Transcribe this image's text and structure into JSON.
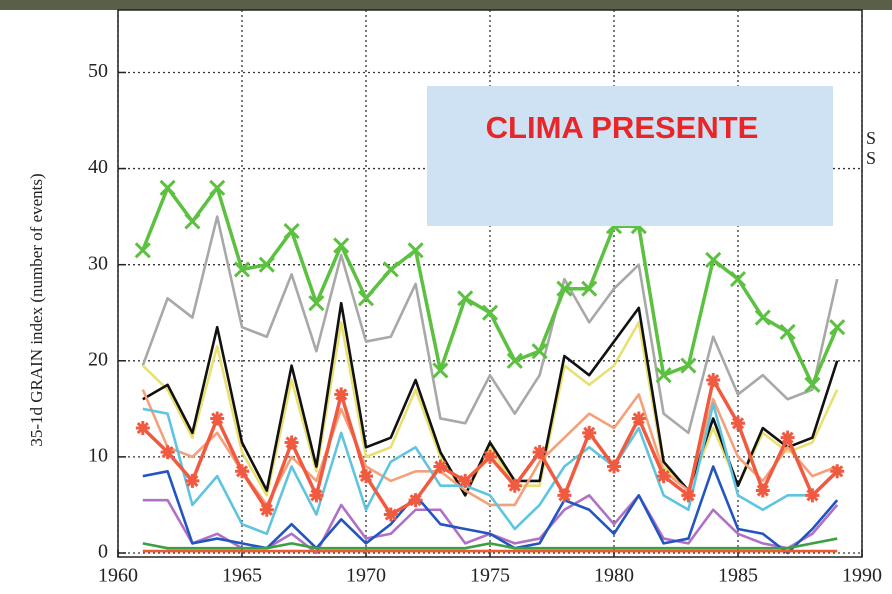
{
  "chart_data": {
    "type": "line",
    "y_label": "35-1d GRAIN index (number of events)",
    "annotation": "CLIMA PRESENTE",
    "right_labels": [
      "S",
      "S"
    ],
    "x": [
      1961,
      1962,
      1963,
      1964,
      1965,
      1966,
      1967,
      1968,
      1969,
      1970,
      1971,
      1972,
      1973,
      1974,
      1975,
      1976,
      1977,
      1978,
      1979,
      1980,
      1981,
      1982,
      1983,
      1984,
      1985,
      1986,
      1987,
      1988,
      1989
    ],
    "xlim": [
      1960,
      1990
    ],
    "xticks": [
      1960,
      1965,
      1970,
      1975,
      1980,
      1985,
      1990
    ],
    "ylim": [
      0,
      56.5
    ],
    "yticks": [
      0,
      10,
      20,
      30,
      40,
      50
    ],
    "grid": true,
    "series": [
      {
        "color": "#a8a8a8",
        "values": [
          19.5,
          26.5,
          24.5,
          35,
          23.5,
          22.5,
          29,
          21,
          31,
          22,
          22.5,
          28,
          14,
          13.5,
          18.5,
          14.5,
          18.5,
          28.5,
          24,
          27.5,
          30,
          14.5,
          12.5,
          22.5,
          16.5,
          18.5,
          16,
          17,
          28.5
        ]
      },
      {
        "color": "#e8e070",
        "values": [
          19.5,
          17,
          12,
          21.5,
          10.5,
          6,
          18,
          8.5,
          24,
          10,
          11,
          17,
          10,
          6,
          11,
          7,
          7,
          19.5,
          17.5,
          19.5,
          24,
          9,
          6.5,
          13,
          7,
          12.5,
          10.5,
          11.5,
          17
        ]
      },
      {
        "color": "#111111",
        "values": [
          16,
          17.5,
          12.5,
          23.5,
          11.5,
          6.5,
          19.5,
          9,
          26,
          11,
          12,
          18,
          10.5,
          6,
          11.5,
          7.5,
          7.5,
          20.5,
          18.5,
          22,
          25.5,
          9.5,
          6.5,
          14,
          7,
          13,
          11,
          12,
          20
        ]
      },
      {
        "color": "#f4a07a",
        "values": [
          17,
          11,
          10,
          12.5,
          8.5,
          5,
          10,
          7.5,
          15,
          9,
          7.5,
          8.5,
          8.5,
          6.5,
          5,
          5,
          9.5,
          12,
          14.5,
          13,
          16.5,
          8.5,
          6.5,
          16,
          10,
          7.5,
          11,
          8,
          9
        ]
      },
      {
        "color": "#5ec4e0",
        "values": [
          15,
          14.5,
          5,
          8,
          3,
          2,
          9,
          4,
          12.5,
          4.5,
          9.5,
          11,
          7,
          7,
          6,
          2.5,
          5,
          9,
          11,
          9,
          13,
          6,
          4.5,
          15.5,
          6,
          4.5,
          6,
          6,
          8.5
        ]
      },
      {
        "color": "#b070c8",
        "values": [
          5.5,
          5.5,
          1,
          2,
          0.5,
          0.5,
          2,
          0,
          5,
          1.5,
          2,
          4.5,
          4.5,
          1,
          2,
          1,
          1.5,
          4.5,
          6,
          3,
          6,
          1.5,
          1,
          4.5,
          2,
          1,
          0.5,
          2,
          5
        ]
      },
      {
        "color": "#2255c0",
        "values": [
          8,
          8.5,
          1,
          1.5,
          1,
          0.5,
          3,
          0.5,
          3.5,
          1,
          3,
          6,
          3,
          2.5,
          2,
          0.5,
          1,
          5.5,
          4.5,
          2,
          6,
          1,
          1.5,
          9,
          2.5,
          2,
          0,
          2.5,
          5.5
        ]
      },
      {
        "color": "#3aa040",
        "values": [
          1,
          0.5,
          0.5,
          0.5,
          0.5,
          0.5,
          1,
          0.5,
          0.5,
          0.5,
          0.5,
          0.5,
          0.5,
          0.5,
          1,
          0.5,
          0.5,
          0.5,
          0.5,
          0.5,
          0.5,
          0.5,
          0.5,
          0.5,
          0.5,
          0.5,
          0.5,
          1,
          1.5
        ]
      },
      {
        "color": "#f05a30",
        "values": [
          0.2,
          0.2,
          0.2,
          0.2,
          0.2,
          0.2,
          0.2,
          0.2,
          0.2,
          0.2,
          0.2,
          0.2,
          0.2,
          0.2,
          0.2,
          0.2,
          0.2,
          0.2,
          0.2,
          0.2,
          0.2,
          0.2,
          0.2,
          0.2,
          0.2,
          0.2,
          0.2,
          0.2,
          0.2
        ]
      },
      {
        "color": "#f05a40",
        "marker": "star",
        "values": [
          13,
          10.5,
          7.5,
          14,
          8.5,
          4.5,
          11.5,
          6,
          16.5,
          8,
          4,
          5.5,
          9,
          7.5,
          10,
          7,
          10.5,
          6,
          12.5,
          9,
          14,
          8,
          6,
          18,
          13.5,
          6.5,
          12,
          6,
          8.5
        ]
      },
      {
        "color": "#5cc040",
        "marker": "x",
        "values": [
          31.5,
          38,
          34.5,
          38,
          29.5,
          30,
          33.5,
          26,
          32,
          26.5,
          29.5,
          31.5,
          19,
          26.5,
          25,
          20,
          21,
          27.5,
          27.5,
          34,
          34,
          18.5,
          19.5,
          30.5,
          28.5,
          24.5,
          23,
          17.5,
          23.5
        ]
      }
    ]
  }
}
